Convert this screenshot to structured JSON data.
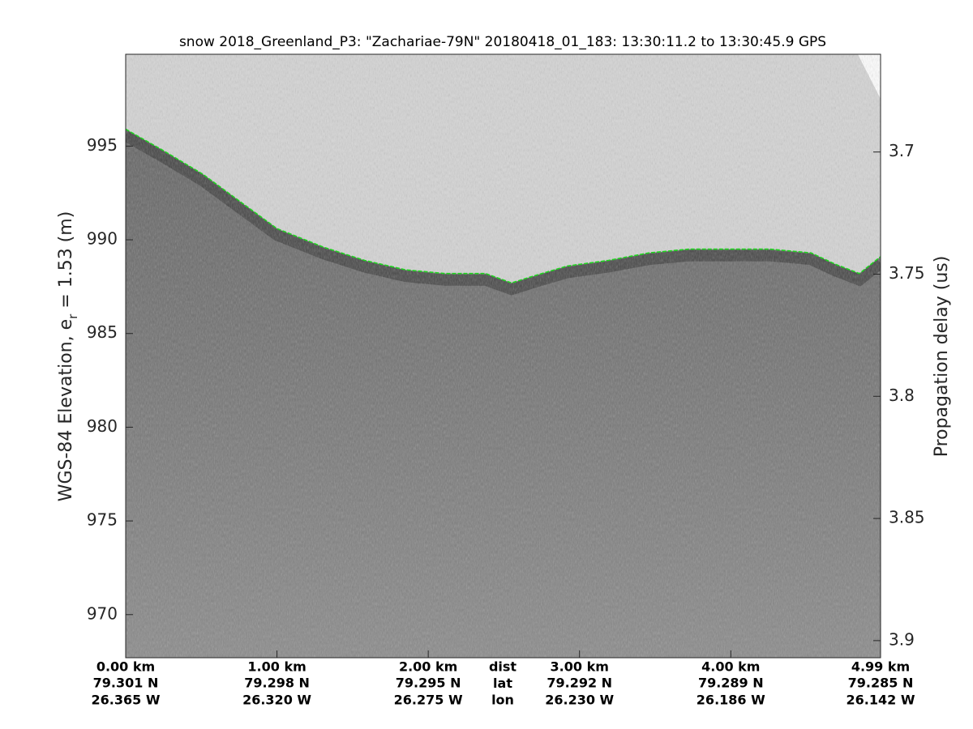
{
  "chart_data": {
    "type": "echogram",
    "title": "snow 2018_Greenland_P3: \"Zachariae-79N\"  20180418_01_183: 13:30:11.2 to 13:30:45.9 GPS",
    "ylabel": "WGS-84 Elevation, e",
    "ylabel_subscript": "r",
    "ylabel_rest": " = 1.53 (m)",
    "y2label": "Propagation delay (us)",
    "xlim": [
      0,
      4.99
    ],
    "ylim": [
      967.7,
      999.9
    ],
    "y2lim": [
      3.907,
      3.66
    ],
    "xticks": [
      {
        "value": 0,
        "label": "0.00 km"
      },
      {
        "value": 1,
        "label": "1.00 km"
      },
      {
        "value": 2,
        "label": "2.00 km"
      },
      {
        "value": 3,
        "label": "3.00 km"
      },
      {
        "value": 4,
        "label": "4.00 km"
      },
      {
        "value": 4.99,
        "label": "4.99 km"
      }
    ],
    "lat_labels": [
      "79.301 N",
      "79.298 N",
      "79.295 N",
      "79.292 N",
      "79.289 N",
      "79.285 N"
    ],
    "lon_labels": [
      "26.365 W",
      "26.320 W",
      "26.275 W",
      "26.230 W",
      "26.186 W",
      "26.142 W"
    ],
    "row_labels": [
      "dist",
      "lat",
      "lon"
    ],
    "yticks": [
      970,
      975,
      980,
      985,
      990,
      995
    ],
    "y2ticks": [
      3.7,
      3.75,
      3.8,
      3.85,
      3.9
    ],
    "series": [
      {
        "name": "surface",
        "color": "#1ed41e",
        "x": [
          0,
          0.24,
          0.51,
          0.78,
          1.0,
          1.31,
          1.58,
          1.85,
          2.11,
          2.38,
          2.55,
          2.71,
          2.92,
          3.19,
          3.46,
          3.72,
          3.99,
          4.26,
          4.53,
          4.69,
          4.85,
          4.99
        ],
        "values": [
          995.9,
          994.8,
          993.5,
          991.9,
          990.6,
          989.6,
          988.9,
          988.4,
          988.2,
          988.2,
          987.7,
          988.1,
          988.6,
          988.9,
          989.3,
          989.5,
          989.5,
          989.5,
          989.3,
          988.7,
          988.2,
          989.1
        ]
      }
    ]
  }
}
